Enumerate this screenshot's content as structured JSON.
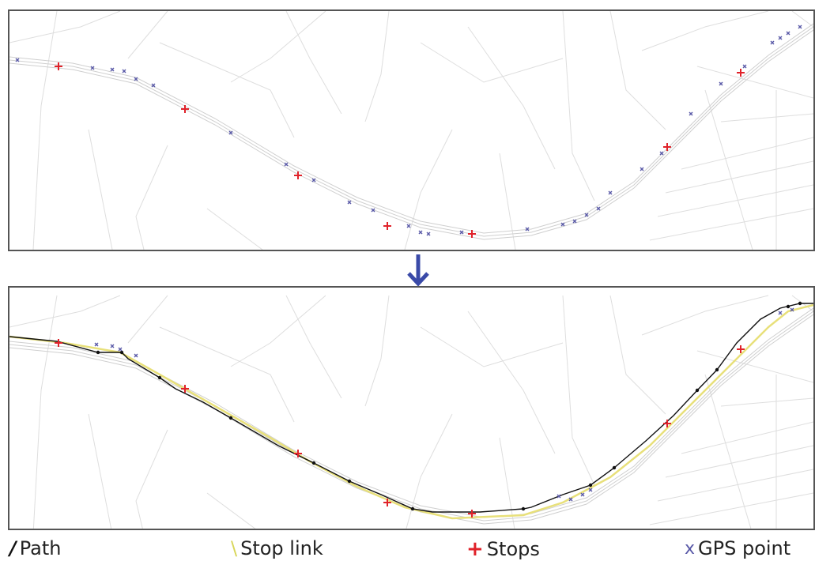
{
  "legend": {
    "path": "Path",
    "stop_link": "Stop link",
    "stops": "Stops",
    "gps_point": "GPS point"
  },
  "colors": {
    "path": "#111111",
    "stop_link": "#e8e07a",
    "stop": "#e0222a",
    "gps_point": "#5a5aa8",
    "street": "#dedede",
    "arrow": "#3a4aa8"
  },
  "icons": {
    "arrow": "arrow-down-icon",
    "stop": "plus-icon",
    "gps": "x-icon"
  }
}
